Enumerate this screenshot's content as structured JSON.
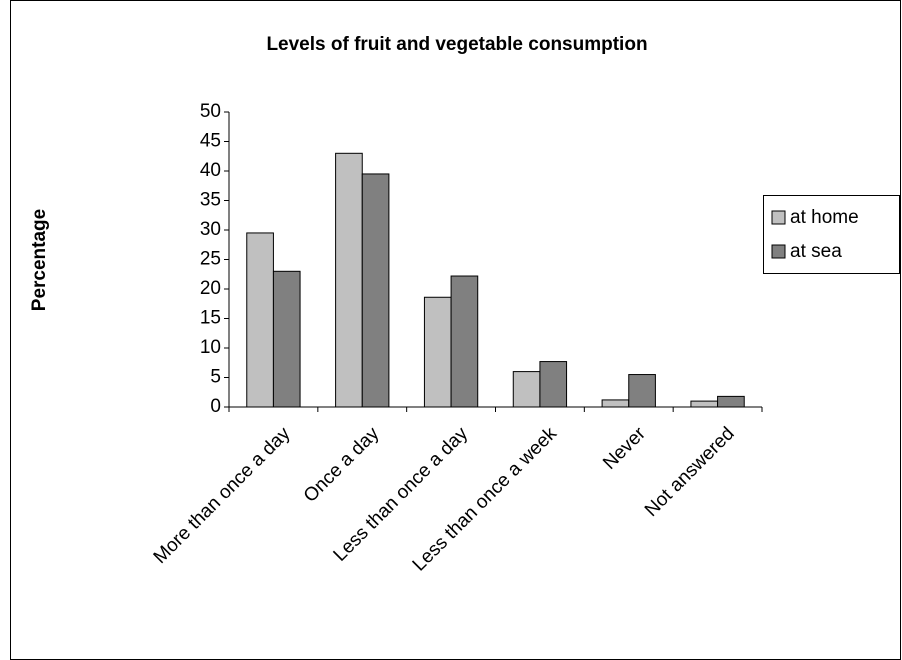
{
  "chart_data": {
    "type": "bar",
    "title": "Levels of fruit and vegetable consumption",
    "y_label": "Percentage",
    "categories": [
      "More than once a day",
      "Once a day",
      "Less than once a day",
      "Less than once a week",
      "Never",
      "Not answered"
    ],
    "series": [
      {
        "name": "at home",
        "color": "#c0c0c0",
        "values": [
          29.5,
          43,
          18.6,
          6,
          1.2,
          1
        ]
      },
      {
        "name": "at sea",
        "color": "#808080",
        "values": [
          23,
          39.5,
          22.2,
          7.7,
          5.5,
          1.8
        ]
      }
    ],
    "ylim": [
      0,
      50
    ],
    "yticks": [
      0,
      5,
      10,
      15,
      20,
      25,
      30,
      35,
      40,
      45,
      50
    ],
    "grid": false,
    "legend": "right"
  }
}
